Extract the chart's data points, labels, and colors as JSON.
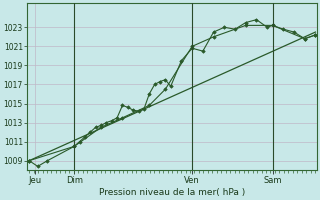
{
  "background_color": "#c8e8e8",
  "plot_bg_color": "#c8e8e8",
  "grid_color": "#c0b8c8",
  "line_color": "#2a5a2a",
  "marker_color": "#2a5a2a",
  "title": "Pression niveau de la mer( hPa )",
  "ylim": [
    1008.0,
    1025.5
  ],
  "yticks": [
    1009,
    1011,
    1013,
    1015,
    1017,
    1019,
    1021,
    1023
  ],
  "day_labels": [
    "Jeu",
    "Dim",
    "Ven",
    "Sam"
  ],
  "day_positions": [
    0.05,
    0.42,
    1.52,
    2.27
  ],
  "xlim": [
    -0.02,
    2.68
  ],
  "series1_x": [
    0.0,
    0.08,
    0.17,
    0.42,
    0.47,
    0.52,
    0.57,
    0.62,
    0.67,
    0.72,
    0.77,
    0.82,
    0.87,
    0.92,
    0.97,
    1.02,
    1.07,
    1.12,
    1.17,
    1.22,
    1.27,
    1.32,
    1.42,
    1.52,
    1.62,
    1.72,
    1.82,
    1.92,
    2.02,
    2.12,
    2.22,
    2.27,
    2.37,
    2.47,
    2.57,
    2.67
  ],
  "series1_y": [
    1009.0,
    1008.4,
    1009.0,
    1010.5,
    1011.0,
    1011.5,
    1012.0,
    1012.5,
    1012.7,
    1013.0,
    1013.2,
    1013.5,
    1014.8,
    1014.6,
    1014.3,
    1014.2,
    1014.4,
    1016.0,
    1017.0,
    1017.3,
    1017.5,
    1016.8,
    1019.5,
    1020.8,
    1020.5,
    1022.5,
    1023.0,
    1022.8,
    1023.5,
    1023.8,
    1023.0,
    1023.2,
    1022.8,
    1022.5,
    1021.8,
    1022.2
  ],
  "series2_x": [
    0.0,
    0.42,
    0.67,
    0.87,
    1.12,
    1.27,
    1.52,
    1.72,
    2.02,
    2.27,
    2.57,
    2.67
  ],
  "series2_y": [
    1009.0,
    1010.5,
    1012.5,
    1013.5,
    1014.8,
    1016.5,
    1021.0,
    1022.0,
    1023.2,
    1023.2,
    1021.8,
    1022.2
  ],
  "series3_x": [
    0.0,
    2.67
  ],
  "series3_y": [
    1009.0,
    1022.5
  ],
  "vlines_x": [
    0.42,
    1.52,
    2.27
  ]
}
